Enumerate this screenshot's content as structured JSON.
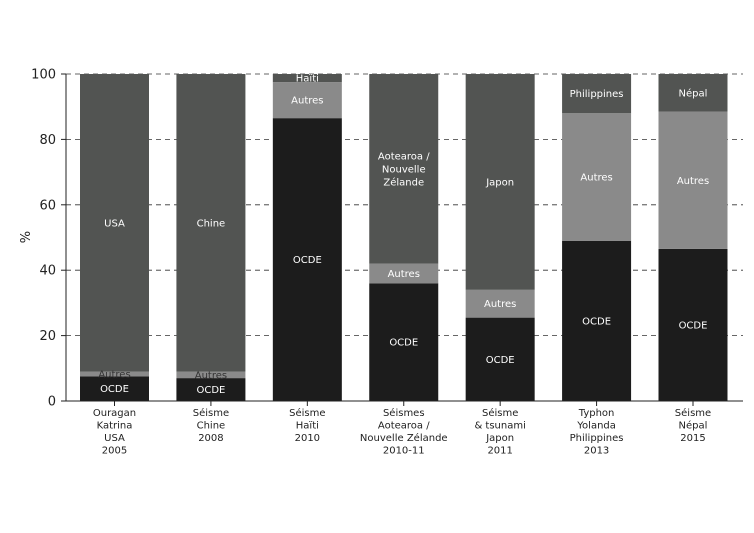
{
  "chart_data": {
    "type": "bar",
    "stacked": true,
    "ylabel": "%",
    "ylim": [
      0,
      100
    ],
    "yticks": [
      0,
      20,
      40,
      60,
      80,
      100
    ],
    "grid": "horizontal dashed",
    "categories": [
      [
        "Ouragan",
        "Katrina",
        "USA",
        "2005"
      ],
      [
        "Séisme",
        "Chine",
        "2008"
      ],
      [
        "Séisme",
        "Haïti",
        "2010"
      ],
      [
        "Séismes",
        "Aotearoa /",
        "Nouvelle Zélande",
        "2010-11"
      ],
      [
        "Séisme",
        "& tsunami",
        "Japon",
        "2011"
      ],
      [
        "Typhon",
        "Yolanda",
        "Philippines",
        "2013"
      ],
      [
        "Séisme",
        "Népal",
        "2015"
      ]
    ],
    "segment_colors": {
      "OCDE": "#1c1c1c",
      "Autres": "#8a8a8a",
      "country": "#525452"
    },
    "bars": [
      {
        "segments": [
          {
            "kind": "OCDE",
            "label": "OCDE",
            "value": 7.5
          },
          {
            "kind": "Autres",
            "label": "Autres",
            "value": 1.5
          },
          {
            "kind": "country",
            "label": [
              "USA"
            ],
            "value": 91
          }
        ]
      },
      {
        "segments": [
          {
            "kind": "OCDE",
            "label": "OCDE",
            "value": 7
          },
          {
            "kind": "Autres",
            "label": "Autres",
            "value": 2
          },
          {
            "kind": "country",
            "label": [
              "Chine"
            ],
            "value": 91
          }
        ]
      },
      {
        "segments": [
          {
            "kind": "OCDE",
            "label": "OCDE",
            "value": 86.5
          },
          {
            "kind": "Autres",
            "label": "Autres",
            "value": 11
          },
          {
            "kind": "country",
            "label": [
              "Haïti"
            ],
            "value": 2.5
          }
        ]
      },
      {
        "segments": [
          {
            "kind": "OCDE",
            "label": "OCDE",
            "value": 36
          },
          {
            "kind": "Autres",
            "label": "Autres",
            "value": 6
          },
          {
            "kind": "country",
            "label": [
              "Aotearoa /",
              "Nouvelle",
              "Zélande"
            ],
            "value": 58
          }
        ]
      },
      {
        "segments": [
          {
            "kind": "OCDE",
            "label": "OCDE",
            "value": 25.5
          },
          {
            "kind": "Autres",
            "label": "Autres",
            "value": 8.5
          },
          {
            "kind": "country",
            "label": [
              "Japon"
            ],
            "value": 66
          }
        ]
      },
      {
        "segments": [
          {
            "kind": "OCDE",
            "label": "OCDE",
            "value": 49
          },
          {
            "kind": "Autres",
            "label": "Autres",
            "value": 39
          },
          {
            "kind": "country",
            "label": [
              "Philippines"
            ],
            "value": 12
          }
        ]
      },
      {
        "segments": [
          {
            "kind": "OCDE",
            "label": "OCDE",
            "value": 46.5
          },
          {
            "kind": "Autres",
            "label": "Autres",
            "value": 42
          },
          {
            "kind": "country",
            "label": [
              "Népal"
            ],
            "value": 11.5
          }
        ]
      }
    ]
  }
}
